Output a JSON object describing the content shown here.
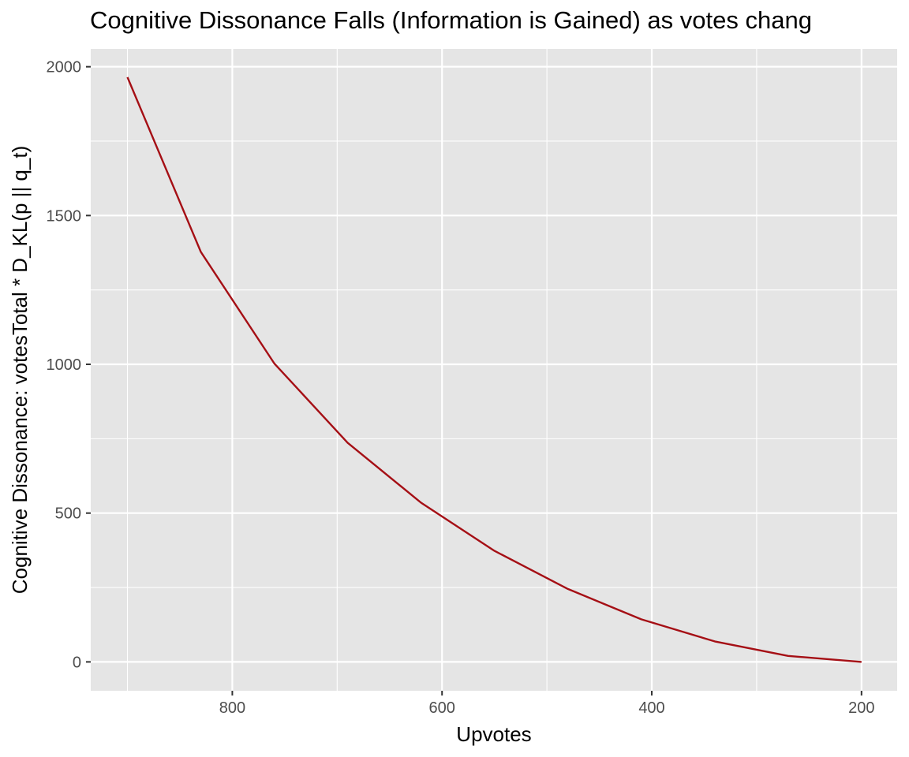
{
  "chart_data": {
    "type": "line",
    "title": "Cognitive Dissonance Falls (Information is Gained) as votes chang",
    "xlabel": "Upvotes",
    "ylabel": "Cognitive Dissonance: votesTotal * D_KL(p || q_t)",
    "x_reversed": true,
    "xlim": [
      935,
      166
    ],
    "ylim": [
      -97,
      2060
    ],
    "x_ticks": [
      800,
      600,
      400,
      200
    ],
    "x_tick_labels": [
      "800",
      "600",
      "400",
      "200"
    ],
    "y_ticks": [
      0,
      500,
      1000,
      1500,
      2000
    ],
    "y_tick_labels": [
      "0",
      "500",
      "1000",
      "1500",
      "2000"
    ],
    "grid": true,
    "legend": "none",
    "colors": {
      "panel_background": "#e5e5e5",
      "grid": "#ffffff",
      "line": "#a50f15",
      "tick_mark": "#333333"
    },
    "series": [
      {
        "x": [
          900,
          830,
          760,
          690,
          620,
          550,
          480,
          410,
          340,
          270,
          200
        ],
        "values": [
          1965,
          1378,
          1003,
          736,
          535,
          373,
          245,
          143,
          69,
          20,
          0
        ]
      }
    ]
  }
}
